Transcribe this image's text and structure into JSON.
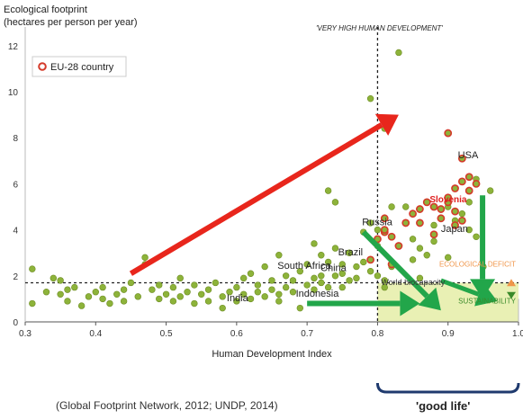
{
  "chart_data": {
    "type": "scatter",
    "ylabel_line1": "Ecological footprint",
    "ylabel_line2": "(hectares per person per year)",
    "xlabel": "Human Development Index",
    "xlim": [
      0.3,
      1.0
    ],
    "ylim": [
      0,
      12.5
    ],
    "x_ticks": [
      "0.3",
      "0.4",
      "0.5",
      "0.6",
      "0.7",
      "0.8",
      "0.9",
      "1.0"
    ],
    "x_tick_values": [
      0.3,
      0.4,
      0.5,
      0.6,
      0.7,
      0.8,
      0.9,
      1.0
    ],
    "y_ticks": [
      "0",
      "2",
      "4",
      "6",
      "8",
      "10",
      "12"
    ],
    "y_tick_values": [
      0,
      2,
      4,
      6,
      8,
      10,
      12
    ],
    "legend": {
      "label": "EU-28 country",
      "placement": "top-left"
    },
    "vhhd_label": "'VERY HIGH HUMAN DEVELOPMENT'",
    "vhhd_threshold": 0.8,
    "biocapacity_value": 1.7,
    "biocapacity_label": "World biocapacity",
    "deficit_label": "ECOLOGICAL DEFICIT",
    "sustainability_label": "SUSTAINABILITY",
    "grid": false,
    "colors": {
      "point": "#8db33a",
      "eu_ring": "#d43a2a",
      "red_arrow": "#e8261c",
      "green_arrow": "#22a64a",
      "sustain_box": "#e9f0b4",
      "deficit": "#f0964a"
    },
    "country_labels": [
      {
        "name": "USA",
        "x": 0.914,
        "y": 7.1
      },
      {
        "name": "Slovenia",
        "x": 0.874,
        "y": 5.2,
        "highlight": true
      },
      {
        "name": "Russia",
        "x": 0.778,
        "y": 4.2
      },
      {
        "name": "Japan",
        "x": 0.89,
        "y": 3.9
      },
      {
        "name": "Brazil",
        "x": 0.744,
        "y": 2.9
      },
      {
        "name": "South Africa",
        "x": 0.658,
        "y": 2.3
      },
      {
        "name": "China",
        "x": 0.719,
        "y": 2.2
      },
      {
        "name": "Indonesia",
        "x": 0.684,
        "y": 1.1
      },
      {
        "name": "India",
        "x": 0.586,
        "y": 0.9
      }
    ],
    "series": [
      {
        "points": [
          [
            0.31,
            2.3
          ],
          [
            0.31,
            0.8
          ],
          [
            0.33,
            1.3
          ],
          [
            0.34,
            1.9
          ],
          [
            0.35,
            1.8
          ],
          [
            0.35,
            1.2
          ],
          [
            0.36,
            1.4
          ],
          [
            0.36,
            0.9
          ],
          [
            0.37,
            1.5
          ],
          [
            0.38,
            0.7
          ],
          [
            0.39,
            1.1
          ],
          [
            0.4,
            1.3
          ],
          [
            0.41,
            1.0
          ],
          [
            0.41,
            1.5
          ],
          [
            0.42,
            0.8
          ],
          [
            0.43,
            1.2
          ],
          [
            0.44,
            1.4
          ],
          [
            0.44,
            0.9
          ],
          [
            0.45,
            1.7
          ],
          [
            0.46,
            1.1
          ],
          [
            0.47,
            2.5
          ],
          [
            0.47,
            2.8
          ],
          [
            0.48,
            1.4
          ],
          [
            0.49,
            1.0
          ],
          [
            0.49,
            1.6
          ],
          [
            0.5,
            1.2
          ],
          [
            0.51,
            0.9
          ],
          [
            0.51,
            1.5
          ],
          [
            0.52,
            1.9
          ],
          [
            0.52,
            1.1
          ],
          [
            0.53,
            1.3
          ],
          [
            0.54,
            0.8
          ],
          [
            0.54,
            1.6
          ],
          [
            0.55,
            1.2
          ],
          [
            0.56,
            1.4
          ],
          [
            0.56,
            0.9
          ],
          [
            0.57,
            1.7
          ],
          [
            0.58,
            1.1
          ],
          [
            0.58,
            0.6
          ],
          [
            0.59,
            1.3
          ],
          [
            0.6,
            1.5
          ],
          [
            0.6,
            0.9
          ],
          [
            0.61,
            1.9
          ],
          [
            0.61,
            1.2
          ],
          [
            0.62,
            2.1
          ],
          [
            0.62,
            1.0
          ],
          [
            0.63,
            1.6
          ],
          [
            0.63,
            1.3
          ],
          [
            0.64,
            2.4
          ],
          [
            0.64,
            1.1
          ],
          [
            0.65,
            1.8
          ],
          [
            0.65,
            1.4
          ],
          [
            0.66,
            2.9
          ],
          [
            0.66,
            1.2
          ],
          [
            0.66,
            0.9
          ],
          [
            0.67,
            2.0
          ],
          [
            0.67,
            1.5
          ],
          [
            0.68,
            1.3
          ],
          [
            0.68,
            1.8
          ],
          [
            0.69,
            2.2
          ],
          [
            0.69,
            0.6
          ],
          [
            0.7,
            1.6
          ],
          [
            0.7,
            2.5
          ],
          [
            0.71,
            1.9
          ],
          [
            0.71,
            1.4
          ],
          [
            0.71,
            3.4
          ],
          [
            0.72,
            2.0
          ],
          [
            0.72,
            1.7
          ],
          [
            0.72,
            2.9
          ],
          [
            0.73,
            5.7
          ],
          [
            0.73,
            1.5
          ],
          [
            0.73,
            2.6
          ],
          [
            0.74,
            5.2
          ],
          [
            0.74,
            2.0
          ],
          [
            0.74,
            3.2
          ],
          [
            0.75,
            2.5
          ],
          [
            0.75,
            1.5
          ],
          [
            0.75,
            2.1
          ],
          [
            0.76,
            3.0
          ],
          [
            0.76,
            1.8
          ],
          [
            0.77,
            2.4
          ],
          [
            0.77,
            1.9
          ],
          [
            0.78,
            3.9
          ],
          [
            0.78,
            2.6
          ],
          [
            0.79,
            4.3
          ],
          [
            0.79,
            2.2
          ],
          [
            0.79,
            9.7
          ],
          [
            0.8,
            3.3
          ],
          [
            0.8,
            2.0
          ],
          [
            0.8,
            4.0
          ],
          [
            0.81,
            1.8
          ],
          [
            0.81,
            1.5
          ],
          [
            0.81,
            8.4
          ],
          [
            0.82,
            2.4
          ],
          [
            0.82,
            5.0
          ],
          [
            0.83,
            11.7
          ],
          [
            0.84,
            5.0
          ],
          [
            0.85,
            2.7
          ],
          [
            0.85,
            3.6
          ],
          [
            0.86,
            1.9
          ],
          [
            0.86,
            3.2
          ],
          [
            0.87,
            2.9
          ],
          [
            0.88,
            3.5
          ],
          [
            0.88,
            4.2
          ],
          [
            0.9,
            5.0
          ],
          [
            0.9,
            2.8
          ],
          [
            0.91,
            4.4
          ],
          [
            0.92,
            4.7
          ],
          [
            0.93,
            5.2
          ],
          [
            0.93,
            4.0
          ],
          [
            0.94,
            3.7
          ],
          [
            0.94,
            6.2
          ],
          [
            0.95,
            2.4
          ],
          [
            0.96,
            5.7
          ]
        ],
        "eu": false
      },
      {
        "points": [
          [
            0.79,
            2.7
          ],
          [
            0.8,
            3.6
          ],
          [
            0.81,
            3.9
          ],
          [
            0.81,
            4.0
          ],
          [
            0.81,
            4.5
          ],
          [
            0.82,
            3.7
          ],
          [
            0.82,
            2.5
          ],
          [
            0.83,
            3.3
          ],
          [
            0.84,
            4.3
          ],
          [
            0.85,
            4.7
          ],
          [
            0.86,
            4.9
          ],
          [
            0.86,
            4.3
          ],
          [
            0.87,
            5.2
          ],
          [
            0.88,
            3.8
          ],
          [
            0.88,
            5.0
          ],
          [
            0.89,
            4.5
          ],
          [
            0.89,
            4.9
          ],
          [
            0.9,
            5.2
          ],
          [
            0.9,
            5.4
          ],
          [
            0.9,
            8.2
          ],
          [
            0.91,
            4.8
          ],
          [
            0.91,
            4.2
          ],
          [
            0.91,
            5.8
          ],
          [
            0.92,
            6.1
          ],
          [
            0.92,
            7.1
          ],
          [
            0.92,
            4.4
          ],
          [
            0.93,
            5.7
          ],
          [
            0.93,
            6.3
          ],
          [
            0.94,
            6.0
          ]
        ],
        "eu": true
      }
    ]
  },
  "caption": "(Global Footprint Network, 2012; UNDP, 2014)",
  "good_life": "'good life'"
}
